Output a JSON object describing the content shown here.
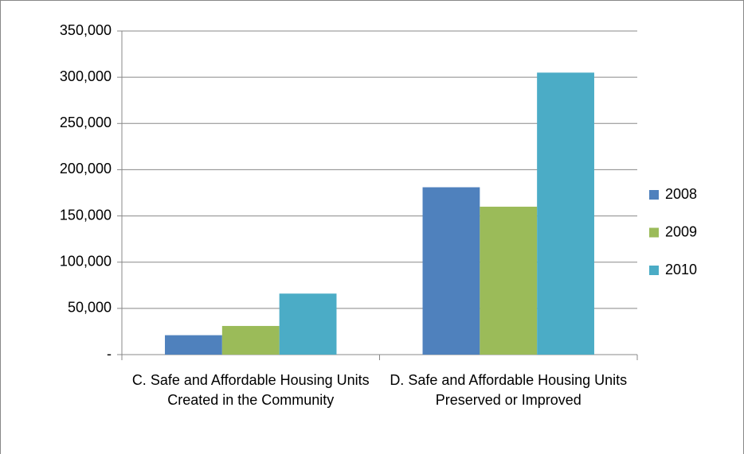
{
  "chart_data": {
    "type": "bar",
    "categories": [
      "C. Safe and Affordable Housing Units Created in the Community",
      "D. Safe and Affordable Housing Units Preserved or Improved"
    ],
    "series": [
      {
        "name": "2008",
        "color": "#4f81bd",
        "values": [
          21000,
          181000
        ]
      },
      {
        "name": "2009",
        "color": "#9bbb59",
        "values": [
          31000,
          160000
        ]
      },
      {
        "name": "2010",
        "color": "#4bacc6",
        "values": [
          66000,
          305000
        ]
      }
    ],
    "ylim": [
      0,
      350000
    ],
    "yticks": [
      {
        "value": 0,
        "label": "-"
      },
      {
        "value": 50000,
        "label": "50,000"
      },
      {
        "value": 100000,
        "label": "100,000"
      },
      {
        "value": 150000,
        "label": "150,000"
      },
      {
        "value": 200000,
        "label": "200,000"
      },
      {
        "value": 250000,
        "label": "250,000"
      },
      {
        "value": 300000,
        "label": "300,000"
      },
      {
        "value": 350000,
        "label": "350,000"
      }
    ],
    "grid": true,
    "legend": "right"
  }
}
